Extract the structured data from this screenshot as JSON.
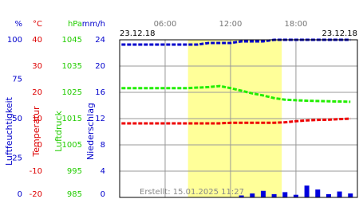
{
  "chart_data": {
    "type": "line",
    "date_left": "23.12.18",
    "date_right": "23.12.18",
    "footer": "Erstellt: 15.01.2025 11:27",
    "xlim": [
      1.83,
      23.64
    ],
    "xticks": [
      {
        "value": 6,
        "label": "06:00"
      },
      {
        "value": 12,
        "label": "12:00"
      },
      {
        "value": 18,
        "label": "18:00"
      }
    ],
    "daylight": [
      8.1,
      16.7
    ],
    "daylight_color": "#ffff99",
    "axes": [
      {
        "unit": "%",
        "label": "Luftfeuchtigkeit",
        "color": "#0000cc",
        "ylim": [
          0,
          100
        ],
        "yticks": [
          0,
          25,
          50,
          75,
          100
        ]
      },
      {
        "unit": "°C",
        "label": "Temperatur",
        "color": "#dd0000",
        "ylim": [
          -20,
          40
        ],
        "yticks": [
          -20,
          -10,
          0,
          10,
          20,
          30,
          40
        ]
      },
      {
        "unit": "hPa",
        "label": "Luftdruck",
        "color": "#22cc00",
        "ylim": [
          985,
          1045
        ],
        "yticks": [
          985,
          995,
          1005,
          1015,
          1025,
          1035,
          1045
        ]
      },
      {
        "unit": "mm/h",
        "label": "Niederschlag",
        "color": "#0000cc",
        "ylim": [
          0,
          24
        ],
        "yticks": [
          0,
          4,
          8,
          12,
          16,
          20,
          24
        ],
        "grid": true
      }
    ],
    "x": [
      2,
      3,
      4,
      5,
      6,
      7,
      8,
      9,
      10,
      11,
      12,
      13,
      14,
      15,
      16,
      17,
      18,
      19,
      20,
      21,
      22,
      23
    ],
    "series": [
      {
        "name": "Luftfeuchtigkeit",
        "axis": 0,
        "color": "#0000cc",
        "values": [
          97,
          97,
          97,
          97,
          97,
          97,
          97,
          97,
          98,
          98,
          98,
          99,
          99,
          99,
          100,
          100,
          100,
          100,
          100,
          100,
          100,
          100
        ]
      },
      {
        "name": "Temperatur",
        "axis": 1,
        "color": "#ee0000",
        "values": [
          8.2,
          8.2,
          8.2,
          8.2,
          8.2,
          8.2,
          8.2,
          8.2,
          8.2,
          8.2,
          8.4,
          8.4,
          8.4,
          8.4,
          8.4,
          8.6,
          9.0,
          9.3,
          9.5,
          9.6,
          9.8,
          10
        ]
      },
      {
        "name": "Luftdruck",
        "axis": 2,
        "color": "#22ee00",
        "values": [
          1026.6,
          1026.6,
          1026.6,
          1026.6,
          1026.6,
          1026.6,
          1026.6,
          1026.8,
          1027,
          1027.4,
          1026.6,
          1025.6,
          1024.6,
          1023.8,
          1022.8,
          1022.2,
          1022.0,
          1021.8,
          1021.7,
          1021.6,
          1021.5,
          1021.4
        ]
      }
    ],
    "precipitation": {
      "axis": 3,
      "color": "#0000dd",
      "x": [
        13,
        14,
        15,
        16,
        17,
        18,
        19,
        20,
        21,
        22,
        23
      ],
      "values": [
        0.3,
        0.6,
        1.0,
        0.5,
        0.8,
        0.4,
        1.8,
        1.2,
        0.5,
        0.9,
        0.6
      ]
    }
  }
}
